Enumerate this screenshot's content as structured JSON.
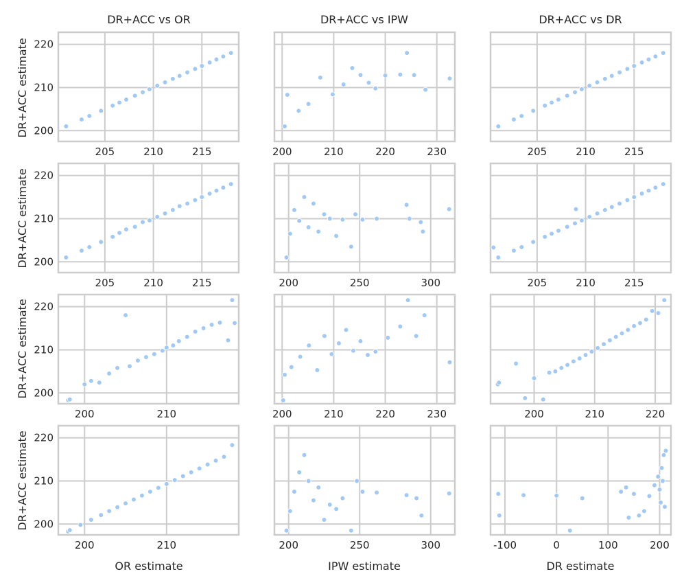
{
  "figure": {
    "col_titles": [
      "DR+ACC vs OR",
      "DR+ACC vs IPW",
      "DR+ACC vs DR"
    ],
    "ylabel": "DR+ACC estimate",
    "xlabels": [
      "OR estimate",
      "IPW estimate",
      "DR estimate"
    ],
    "colors": {
      "point": "#a1c9f4",
      "point_edge": "#ffffff",
      "grid": "#cccccc",
      "frame": "#cccccc",
      "text": "#262626"
    }
  },
  "chart_data": [
    {
      "id": "r1c1",
      "type": "scatter",
      "title": "DR+ACC vs OR",
      "ylabel": "DR+ACC estimate",
      "xlabel": "",
      "xlim": [
        200.2,
        218.8
      ],
      "ylim": [
        197.5,
        222.8
      ],
      "xticks": [
        205,
        210,
        215
      ],
      "yticks": [
        200,
        210,
        220
      ],
      "x": [
        201.0,
        202.6,
        203.4,
        204.6,
        205.8,
        206.5,
        207.2,
        208.1,
        208.9,
        209.6,
        210.4,
        211.2,
        212.0,
        212.7,
        213.5,
        214.3,
        215.0,
        215.8,
        216.5,
        217.2,
        218.0
      ],
      "y": [
        201.0,
        202.6,
        203.4,
        204.6,
        205.8,
        206.5,
        207.2,
        208.1,
        208.9,
        209.6,
        210.4,
        211.2,
        212.0,
        212.7,
        213.5,
        214.3,
        215.0,
        215.8,
        216.5,
        217.2,
        218.0
      ]
    },
    {
      "id": "r1c2",
      "type": "scatter",
      "title": "DR+ACC vs IPW",
      "ylabel": "",
      "xlabel": "",
      "xlim": [
        198.5,
        233.5
      ],
      "ylim": [
        197.5,
        222.8
      ],
      "xticks": [
        200,
        210,
        220,
        230
      ],
      "yticks": [
        200,
        210,
        220
      ],
      "x": [
        200.5,
        201.0,
        203.2,
        205.1,
        207.4,
        209.8,
        211.9,
        213.6,
        215.2,
        216.8,
        218.1,
        220.0,
        222.9,
        224.2,
        225.6,
        227.8,
        232.5
      ],
      "y": [
        201.0,
        208.3,
        204.6,
        206.2,
        212.3,
        208.4,
        210.7,
        214.5,
        212.9,
        211.1,
        209.8,
        212.8,
        213.0,
        218.0,
        212.9,
        209.5,
        212.1
      ]
    },
    {
      "id": "r1c3",
      "type": "scatter",
      "title": "DR+ACC vs DR",
      "ylabel": "",
      "xlabel": "",
      "xlim": [
        200.2,
        218.8
      ],
      "ylim": [
        197.5,
        222.8
      ],
      "xticks": [
        205,
        210,
        215
      ],
      "yticks": [
        200,
        210,
        220
      ],
      "x": [
        201.0,
        202.6,
        203.4,
        204.6,
        205.8,
        206.5,
        207.2,
        208.1,
        208.9,
        209.6,
        210.4,
        211.2,
        212.0,
        212.7,
        213.5,
        214.3,
        215.0,
        215.8,
        216.5,
        217.2,
        218.0
      ],
      "y": [
        201.0,
        202.6,
        203.4,
        204.6,
        205.8,
        206.5,
        207.2,
        208.1,
        208.9,
        209.6,
        210.4,
        211.2,
        212.0,
        212.7,
        213.5,
        214.3,
        215.0,
        215.8,
        216.5,
        217.2,
        218.0
      ]
    },
    {
      "id": "r2c1",
      "type": "scatter",
      "title": "",
      "ylabel": "DR+ACC estimate",
      "xlabel": "",
      "xlim": [
        200.2,
        218.8
      ],
      "ylim": [
        197.5,
        222.8
      ],
      "xticks": [
        205,
        210,
        215
      ],
      "yticks": [
        200,
        210,
        220
      ],
      "x": [
        201.0,
        202.6,
        203.4,
        204.6,
        205.8,
        206.5,
        207.2,
        208.1,
        208.9,
        209.6,
        210.4,
        211.2,
        212.0,
        212.7,
        213.5,
        214.3,
        215.0,
        215.8,
        216.5,
        217.2,
        218.0
      ],
      "y": [
        201.0,
        202.6,
        203.4,
        204.6,
        205.8,
        206.7,
        207.5,
        208.1,
        209.2,
        209.6,
        210.4,
        211.2,
        212.0,
        212.9,
        213.5,
        214.3,
        215.0,
        215.8,
        216.5,
        217.2,
        218.0
      ]
    },
    {
      "id": "r2c2",
      "type": "scatter",
      "title": "",
      "ylabel": "",
      "xlabel": "",
      "xlim": [
        190,
        317
      ],
      "ylim": [
        197.5,
        222.8
      ],
      "xticks": [
        200,
        250,
        300
      ],
      "yticks": [
        200,
        210,
        220
      ],
      "x": [
        198.5,
        201.0,
        204.0,
        207.5,
        211.0,
        214.0,
        217.5,
        221.0,
        225.0,
        229.0,
        233.5,
        238.0,
        244.0,
        247.0,
        252.0,
        262.0,
        283.0,
        285.0,
        293.0,
        294.5,
        313.0
      ],
      "y": [
        201.0,
        206.5,
        212.0,
        209.5,
        215.0,
        208.0,
        213.5,
        207.0,
        211.0,
        210.0,
        206.0,
        209.8,
        203.5,
        211.0,
        209.8,
        210.0,
        213.2,
        210.0,
        209.2,
        207.0,
        212.2
      ]
    },
    {
      "id": "r2c3",
      "type": "scatter",
      "title": "",
      "ylabel": "",
      "xlabel": "",
      "xlim": [
        200.2,
        218.8
      ],
      "ylim": [
        197.5,
        222.8
      ],
      "xticks": [
        205,
        210,
        215
      ],
      "yticks": [
        200,
        210,
        220
      ],
      "x": [
        200.5,
        201.0,
        202.6,
        203.4,
        204.6,
        205.8,
        206.5,
        207.2,
        208.1,
        208.9,
        209.0,
        209.6,
        210.4,
        211.2,
        212.0,
        212.7,
        213.5,
        214.3,
        215.0,
        215.8,
        216.5,
        217.2,
        218.0
      ],
      "y": [
        203.3,
        201.0,
        202.6,
        203.4,
        204.6,
        205.8,
        206.5,
        207.2,
        208.1,
        208.9,
        212.2,
        209.6,
        210.4,
        211.2,
        212.0,
        212.7,
        213.5,
        214.3,
        215.0,
        215.8,
        216.5,
        217.2,
        218.0
      ]
    },
    {
      "id": "r3c1",
      "type": "scatter",
      "title": "",
      "ylabel": "DR+ACC estimate",
      "xlabel": "",
      "xlim": [
        196.8,
        218.8
      ],
      "ylim": [
        197.5,
        222.8
      ],
      "xticks": [
        200,
        210
      ],
      "yticks": [
        200,
        210,
        220
      ],
      "x": [
        198.0,
        198.2,
        200.0,
        200.8,
        201.8,
        203.0,
        204.0,
        205.0,
        205.5,
        206.5,
        207.5,
        208.5,
        209.5,
        210.0,
        210.8,
        211.5,
        212.5,
        213.5,
        214.5,
        215.5,
        216.5,
        217.5,
        218.0,
        218.3
      ],
      "y": [
        198.3,
        198.5,
        202.0,
        202.8,
        202.4,
        204.5,
        205.8,
        218.0,
        206.2,
        207.5,
        208.3,
        209.0,
        209.8,
        210.5,
        211.0,
        212.0,
        213.0,
        214.2,
        215.0,
        215.8,
        216.3,
        212.2,
        221.5,
        216.2
      ]
    },
    {
      "id": "r3c2",
      "type": "scatter",
      "title": "",
      "ylabel": "",
      "xlabel": "",
      "xlim": [
        198.5,
        233.5
      ],
      "ylim": [
        197.5,
        222.8
      ],
      "xticks": [
        200,
        210,
        220,
        230
      ],
      "yticks": [
        200,
        210,
        220
      ],
      "x": [
        200.2,
        200.5,
        201.8,
        203.5,
        205.2,
        206.8,
        208.2,
        209.6,
        211.0,
        212.4,
        213.8,
        215.2,
        216.6,
        218.1,
        220.5,
        222.9,
        224.4,
        226.0,
        227.6,
        232.5
      ],
      "y": [
        198.3,
        204.2,
        206.0,
        208.4,
        211.0,
        205.3,
        213.2,
        209.0,
        211.5,
        214.6,
        209.8,
        212.0,
        208.8,
        209.6,
        212.8,
        215.4,
        221.5,
        213.2,
        218.0,
        207.1
      ]
    },
    {
      "id": "r3c3",
      "type": "scatter",
      "title": "",
      "ylabel": "",
      "xlabel": "",
      "xlim": [
        192.8,
        222.6
      ],
      "ylim": [
        197.5,
        222.8
      ],
      "xticks": [
        200,
        210,
        220
      ],
      "yticks": [
        200,
        210,
        220
      ],
      "x": [
        194.0,
        194.2,
        197.0,
        198.5,
        200.0,
        201.5,
        202.5,
        203.5,
        204.5,
        205.5,
        206.5,
        207.5,
        208.5,
        209.5,
        210.5,
        211.5,
        212.5,
        213.5,
        214.5,
        215.5,
        216.5,
        217.5,
        218.5,
        219.5,
        220.5,
        221.5
      ],
      "y": [
        202.0,
        202.4,
        206.8,
        198.8,
        203.4,
        198.5,
        204.7,
        205.0,
        205.8,
        206.5,
        207.3,
        208.0,
        208.8,
        209.6,
        210.4,
        211.3,
        212.2,
        213.0,
        213.8,
        214.6,
        215.5,
        216.2,
        217.0,
        219.0,
        218.5,
        221.5
      ]
    },
    {
      "id": "r4c1",
      "type": "scatter",
      "title": "",
      "ylabel": "DR+ACC estimate",
      "xlabel": "OR estimate",
      "xlim": [
        196.8,
        218.8
      ],
      "ylim": [
        197.5,
        222.8
      ],
      "xticks": [
        200,
        210
      ],
      "yticks": [
        200,
        210,
        220
      ],
      "x": [
        198.0,
        198.2,
        199.5,
        200.8,
        202.0,
        203.0,
        204.0,
        205.0,
        206.0,
        207.0,
        208.0,
        209.0,
        210.0,
        211.0,
        212.0,
        213.0,
        214.0,
        215.0,
        216.0,
        217.0,
        218.0
      ],
      "y": [
        198.3,
        198.6,
        199.8,
        201.0,
        202.1,
        203.0,
        203.9,
        204.8,
        205.7,
        206.6,
        207.5,
        208.4,
        209.3,
        210.2,
        211.1,
        212.0,
        212.9,
        213.8,
        214.7,
        215.6,
        218.3
      ]
    },
    {
      "id": "r4c2",
      "type": "scatter",
      "title": "",
      "ylabel": "",
      "xlabel": "IPW estimate",
      "xlim": [
        190,
        317
      ],
      "ylim": [
        197.5,
        222.8
      ],
      "xticks": [
        200,
        250,
        300
      ],
      "yticks": [
        200,
        210,
        220
      ],
      "x": [
        198.5,
        201.0,
        204.0,
        207.5,
        211.0,
        214.0,
        217.5,
        221.0,
        225.0,
        229.0,
        233.5,
        238.0,
        244.0,
        248.0,
        252.0,
        262.0,
        283.0,
        290.0,
        293.5,
        313.0
      ],
      "y": [
        198.5,
        203.0,
        207.5,
        212.0,
        216.0,
        210.0,
        205.5,
        208.5,
        201.0,
        204.5,
        203.5,
        206.0,
        198.5,
        210.0,
        207.5,
        207.3,
        206.7,
        206.0,
        202.0,
        207.1
      ]
    },
    {
      "id": "r4c3",
      "type": "scatter",
      "title": "",
      "ylabel": "",
      "xlabel": "DR estimate",
      "xlim": [
        -128,
        222
      ],
      "ylim": [
        197.5,
        222.8
      ],
      "xticks": [
        -100,
        0,
        100,
        200
      ],
      "yticks": [
        200,
        210,
        220
      ],
      "x": [
        -113.0,
        -111.0,
        -64.0,
        0.0,
        26.0,
        50.0,
        125.0,
        135.0,
        140.0,
        150.0,
        160.0,
        170.0,
        180.0,
        190.0,
        197.0,
        200.0,
        202.0,
        204.0,
        206.0,
        208.0,
        210.0,
        212.0
      ],
      "y": [
        207.0,
        202.0,
        206.7,
        206.6,
        198.5,
        206.0,
        207.5,
        208.5,
        201.5,
        207.0,
        202.0,
        203.0,
        206.5,
        209.0,
        211.0,
        208.0,
        205.0,
        213.0,
        210.0,
        216.0,
        204.0,
        217.0
      ]
    }
  ]
}
